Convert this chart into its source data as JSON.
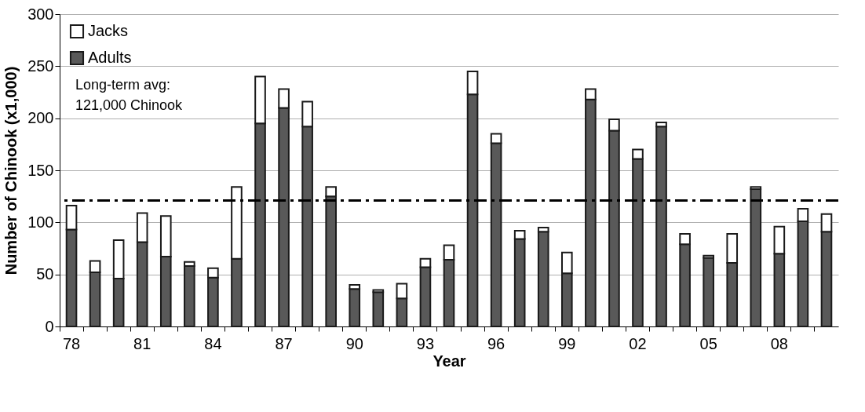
{
  "chart_data": {
    "type": "bar",
    "stacked": true,
    "xlabel": "Year",
    "ylabel": "Number of Chinook (x1,000)",
    "categories": [
      "78",
      null,
      null,
      "81",
      null,
      null,
      "84",
      null,
      null,
      "87",
      null,
      null,
      "90",
      null,
      null,
      "93",
      null,
      null,
      "96",
      null,
      null,
      "99",
      null,
      null,
      "02",
      null,
      null,
      "05",
      null,
      null,
      "08",
      null,
      null
    ],
    "series": [
      {
        "name": "Adults",
        "color": "#595959",
        "values": [
          93,
          52,
          46,
          81,
          67,
          58,
          47,
          65,
          195,
          210,
          192,
          125,
          36,
          33,
          27,
          57,
          64,
          223,
          176,
          84,
          91,
          51,
          218,
          188,
          161,
          192,
          79,
          66,
          61,
          132,
          70,
          101,
          91
        ]
      },
      {
        "name": "Jacks",
        "color": "#ffffff",
        "values": [
          23,
          11,
          37,
          28,
          39,
          4,
          9,
          69,
          45,
          18,
          24,
          9,
          4,
          2,
          14,
          8,
          14,
          22,
          9,
          8,
          4,
          20,
          10,
          11,
          9,
          4,
          10,
          2,
          28,
          2,
          26,
          12,
          17
        ]
      }
    ],
    "ylim": [
      0,
      300
    ],
    "yticks": [
      0,
      50,
      100,
      150,
      200,
      250,
      300
    ],
    "grid": "y",
    "legend": "top left",
    "ref_lines": [
      {
        "axis": "y",
        "value": 121,
        "line_style": "dashed",
        "color": "#000000"
      }
    ],
    "annotations": [
      "Long-term avg:",
      "121,000 Chinook"
    ]
  }
}
